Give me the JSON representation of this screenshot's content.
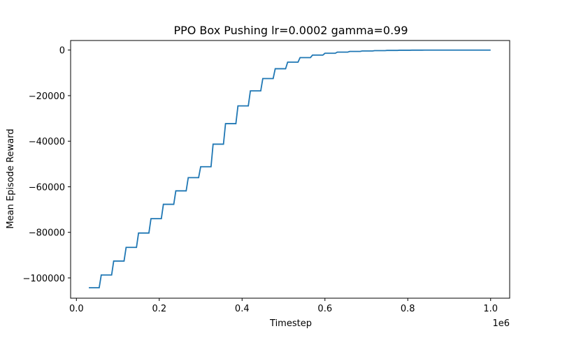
{
  "chart_data": {
    "type": "line",
    "title": "PPO Box Pushing lr=0.0002 gamma=0.99",
    "xlabel": "Timestep",
    "ylabel": "Mean Episode Reward",
    "x_offset_label": "1e6",
    "xlim": [
      -0.014,
      1.046
    ],
    "ylim": [
      -108900,
      4200
    ],
    "xticks": [
      0.0,
      0.2,
      0.4,
      0.6,
      0.8,
      1.0
    ],
    "xtick_labels": [
      "0.0",
      "0.2",
      "0.4",
      "0.6",
      "0.8",
      "1.0"
    ],
    "yticks": [
      0,
      -20000,
      -40000,
      -60000,
      -80000,
      -100000
    ],
    "ytick_labels": [
      "0",
      "−20000",
      "−40000",
      "−60000",
      "−80000",
      "−100000"
    ],
    "grid": false,
    "line_color": "#1f77b4",
    "series": [
      {
        "x": [
          0.03,
          0.055,
          0.06,
          0.085,
          0.09,
          0.115,
          0.12,
          0.145,
          0.15,
          0.175,
          0.18,
          0.205,
          0.21,
          0.235,
          0.24,
          0.265,
          0.27,
          0.295,
          0.3,
          0.325,
          0.33,
          0.355,
          0.36,
          0.385,
          0.39,
          0.415,
          0.42,
          0.445,
          0.45,
          0.475,
          0.48,
          0.505,
          0.51,
          0.535,
          0.54,
          0.565,
          0.57,
          0.595,
          0.6,
          0.625,
          0.63,
          0.655,
          0.66,
          0.685,
          0.69,
          0.715,
          0.72,
          0.745,
          0.75,
          0.775,
          0.78,
          0.805,
          0.81,
          0.835,
          0.84,
          1.0
        ],
        "y": [
          -104300,
          -104300,
          -98700,
          -98700,
          -92600,
          -92600,
          -86600,
          -86600,
          -80300,
          -80300,
          -74000,
          -74000,
          -67700,
          -67700,
          -61800,
          -61800,
          -56000,
          -56000,
          -51200,
          -51200,
          -41300,
          -41300,
          -32300,
          -32300,
          -24500,
          -24500,
          -17900,
          -17900,
          -12500,
          -12500,
          -8200,
          -8200,
          -5300,
          -5300,
          -3300,
          -3300,
          -2200,
          -2200,
          -1400,
          -1400,
          -900,
          -900,
          -600,
          -600,
          -400,
          -400,
          -250,
          -250,
          -150,
          -150,
          -80,
          -80,
          -40,
          -40,
          -10,
          -10
        ]
      }
    ]
  }
}
